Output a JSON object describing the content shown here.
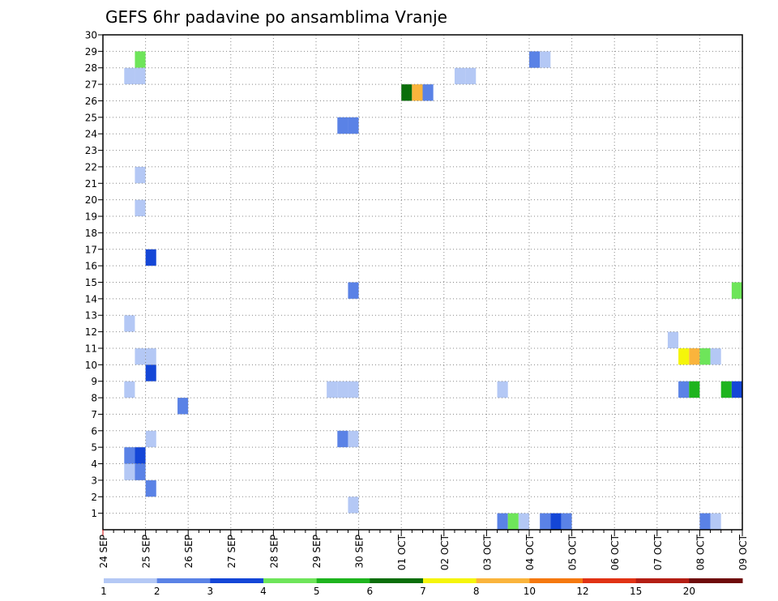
{
  "chart_data": {
    "type": "heatmap",
    "title": "GEFS 6hr padavine po ansamblima Vranje",
    "y_members": [
      1,
      2,
      3,
      4,
      5,
      6,
      7,
      8,
      9,
      10,
      11,
      12,
      13,
      14,
      15,
      16,
      17,
      18,
      19,
      20,
      21,
      22,
      23,
      24,
      25,
      26,
      27,
      28,
      29,
      30
    ],
    "x_dates": [
      "24 SEP",
      "25 SEP",
      "26 SEP",
      "27 SEP",
      "28 SEP",
      "29 SEP",
      "30 SEP",
      "01 OCT",
      "02 OCT",
      "03 OCT",
      "04 OCT",
      "05 OCT",
      "06 OCT",
      "07 OCT",
      "08 OCT",
      "09 OCT"
    ],
    "x_step_hours": 6,
    "grid": true,
    "legend": {
      "position": "bottom",
      "thresholds": [
        "1",
        "2",
        "3",
        "4",
        "5",
        "6",
        "7",
        "8",
        "10",
        "12",
        "15",
        "20"
      ],
      "colors": [
        "#b4c8f5",
        "#5a82e6",
        "#1446d7",
        "#6ee55a",
        "#1eb41e",
        "#0a6e0a",
        "#f5f50a",
        "#fab43c",
        "#f5780f",
        "#e13214",
        "#b41e14",
        "#6e0a0a"
      ]
    },
    "cells": [
      {
        "date": "25 SEP",
        "step": -1,
        "member": 28,
        "level": 4
      },
      {
        "date": "25 SEP",
        "step": -2,
        "member": 27,
        "level": 1
      },
      {
        "date": "25 SEP",
        "step": -1,
        "member": 27,
        "level": 1
      },
      {
        "date": "25 SEP",
        "step": -1,
        "member": 21,
        "level": 1
      },
      {
        "date": "25 SEP",
        "step": -1,
        "member": 19,
        "level": 1
      },
      {
        "date": "25 SEP",
        "step": 0,
        "member": 16,
        "level": 3
      },
      {
        "date": "25 SEP",
        "step": -2,
        "member": 12,
        "level": 1
      },
      {
        "date": "25 SEP",
        "step": -1,
        "member": 10,
        "level": 1
      },
      {
        "date": "25 SEP",
        "step": 0,
        "member": 10,
        "level": 1
      },
      {
        "date": "25 SEP",
        "step": 0,
        "member": 9,
        "level": 3
      },
      {
        "date": "25 SEP",
        "step": -2,
        "member": 8,
        "level": 1
      },
      {
        "date": "26 SEP",
        "step": -1,
        "member": 7,
        "level": 2
      },
      {
        "date": "25 SEP",
        "step": 0,
        "member": 5,
        "level": 1
      },
      {
        "date": "25 SEP",
        "step": -2,
        "member": 4,
        "level": 2
      },
      {
        "date": "25 SEP",
        "step": -1,
        "member": 4,
        "level": 3
      },
      {
        "date": "25 SEP",
        "step": -2,
        "member": 3,
        "level": 1
      },
      {
        "date": "25 SEP",
        "step": -1,
        "member": 3,
        "level": 2
      },
      {
        "date": "25 SEP",
        "step": 0,
        "member": 2,
        "level": 2
      },
      {
        "date": "30 SEP",
        "step": -2,
        "member": 24,
        "level": 2
      },
      {
        "date": "30 SEP",
        "step": -1,
        "member": 24,
        "level": 2
      },
      {
        "date": "30 SEP",
        "step": -1,
        "member": 14,
        "level": 2
      },
      {
        "date": "30 SEP",
        "step": -3,
        "member": 8,
        "level": 1
      },
      {
        "date": "30 SEP",
        "step": -2,
        "member": 8,
        "level": 1
      },
      {
        "date": "30 SEP",
        "step": -1,
        "member": 8,
        "level": 1
      },
      {
        "date": "30 SEP",
        "step": -2,
        "member": 5,
        "level": 2
      },
      {
        "date": "30 SEP",
        "step": -1,
        "member": 5,
        "level": 1
      },
      {
        "date": "30 SEP",
        "step": -1,
        "member": 1,
        "level": 1
      },
      {
        "date": "01 OCT",
        "step": 0,
        "member": 26,
        "level": 6
      },
      {
        "date": "01 OCT",
        "step": 1,
        "member": 26,
        "level": 8
      },
      {
        "date": "01 OCT",
        "step": 2,
        "member": 26,
        "level": 2
      },
      {
        "date": "02 OCT",
        "step": 1,
        "member": 27,
        "level": 1
      },
      {
        "date": "02 OCT",
        "step": 2,
        "member": 27,
        "level": 1
      },
      {
        "date": "03 OCT",
        "step": 1,
        "member": 8,
        "level": 1
      },
      {
        "date": "04 OCT",
        "step": 0,
        "member": 28,
        "level": 2
      },
      {
        "date": "04 OCT",
        "step": 1,
        "member": 28,
        "level": 1
      },
      {
        "date": "03 OCT",
        "step": 1,
        "member": 0,
        "level": 2
      },
      {
        "date": "03 OCT",
        "step": 2,
        "member": 0,
        "level": 4
      },
      {
        "date": "03 OCT",
        "step": 3,
        "member": 0,
        "level": 1
      },
      {
        "date": "04 OCT",
        "step": 1,
        "member": 0,
        "level": 2
      },
      {
        "date": "04 OCT",
        "step": 2,
        "member": 0,
        "level": 3
      },
      {
        "date": "04 OCT",
        "step": 3,
        "member": 0,
        "level": 2
      },
      {
        "date": "07 OCT",
        "step": 1,
        "member": 11,
        "level": 1
      },
      {
        "date": "07 OCT",
        "step": 2,
        "member": 10,
        "level": 7
      },
      {
        "date": "07 OCT",
        "step": 3,
        "member": 10,
        "level": 8
      },
      {
        "date": "08 OCT",
        "step": 0,
        "member": 10,
        "level": 4
      },
      {
        "date": "08 OCT",
        "step": 1,
        "member": 10,
        "level": 1
      },
      {
        "date": "07 OCT",
        "step": 2,
        "member": 8,
        "level": 2
      },
      {
        "date": "07 OCT",
        "step": 3,
        "member": 8,
        "level": 5
      },
      {
        "date": "08 OCT",
        "step": 2,
        "member": 8,
        "level": 5
      },
      {
        "date": "08 OCT",
        "step": 3,
        "member": 8,
        "level": 3
      },
      {
        "date": "08 OCT",
        "step": 3,
        "member": 14,
        "level": 4
      },
      {
        "date": "08 OCT",
        "step": 0,
        "member": 0,
        "level": 2
      },
      {
        "date": "08 OCT",
        "step": 1,
        "member": 0,
        "level": 1
      }
    ]
  }
}
